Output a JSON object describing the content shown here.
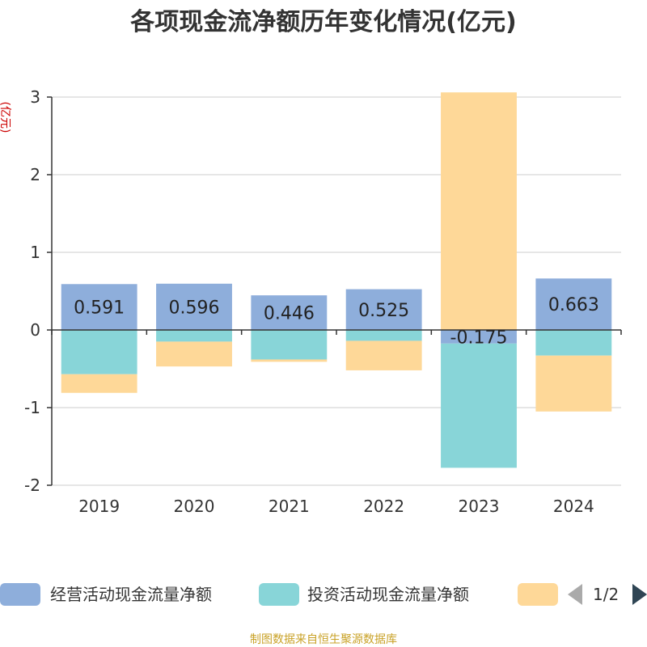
{
  "chart_data": {
    "type": "bar",
    "stacked": true,
    "title": "各项现金流净额历年变化情况(亿元)",
    "ylabel": "(亿元)",
    "categories": [
      "2019",
      "2020",
      "2021",
      "2022",
      "2023",
      "2024"
    ],
    "ylim": [
      -2,
      3
    ],
    "yticks": [
      3,
      2,
      1,
      0,
      -1,
      -2
    ],
    "grid": true,
    "series": [
      {
        "name": "经营活动现金流量净额",
        "color": "#8eaedb",
        "values": [
          0.591,
          0.596,
          0.446,
          0.525,
          -0.175,
          0.663
        ],
        "labels": [
          "0.591",
          "0.596",
          "0.446",
          "0.525",
          "-0.175",
          "0.663"
        ]
      },
      {
        "name": "投资活动现金流量净额",
        "color": "#88d5d8",
        "values": [
          -0.57,
          -0.15,
          -0.38,
          -0.14,
          -1.6,
          -0.33
        ]
      },
      {
        "name": "",
        "color": "#fed898",
        "values": [
          -0.24,
          -0.32,
          -0.03,
          -0.38,
          3.06,
          -0.72
        ]
      }
    ],
    "legend": {
      "position": "bottom",
      "page": "1/2"
    }
  },
  "footer": {
    "source": "制图数据来自恒生聚源数据库"
  }
}
